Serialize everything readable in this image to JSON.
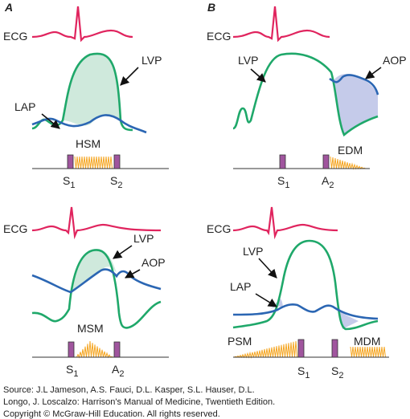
{
  "panels": [
    {
      "label": "A",
      "ecg": "ECG",
      "curves": [
        "LVP",
        "LAP"
      ],
      "murmurs": [
        "HSM"
      ],
      "sounds": [
        {
          "main": "S",
          "sub": "1"
        },
        {
          "main": "S",
          "sub": "2"
        }
      ]
    },
    {
      "label": "B",
      "ecg": "ECG",
      "curves": [
        "LVP",
        "AOP"
      ],
      "murmurs": [
        "EDM"
      ],
      "sounds": [
        {
          "main": "S",
          "sub": "1"
        },
        {
          "main": "A",
          "sub": "2"
        }
      ]
    },
    {
      "ecg": "ECG",
      "curves": [
        "LVP",
        "AOP"
      ],
      "murmurs": [
        "MSM"
      ],
      "sounds": [
        {
          "main": "S",
          "sub": "1"
        },
        {
          "main": "A",
          "sub": "2"
        }
      ]
    },
    {
      "ecg": "ECG",
      "curves": [
        "LVP",
        "LAP"
      ],
      "murmurs": [
        "PSM",
        "MDM"
      ],
      "sounds": [
        {
          "main": "S",
          "sub": "1"
        },
        {
          "main": "S",
          "sub": "2"
        }
      ]
    }
  ],
  "source": [
    "Source: J.L Jameson, A.S. Fauci, D.L. Kasper, S.L. Hauser, D.L.",
    "Longo, J. Loscalzo: Harrison's Manual of Medicine, Twentieth Edition.",
    "Copyright © McGraw-Hill Education. All rights reserved."
  ]
}
